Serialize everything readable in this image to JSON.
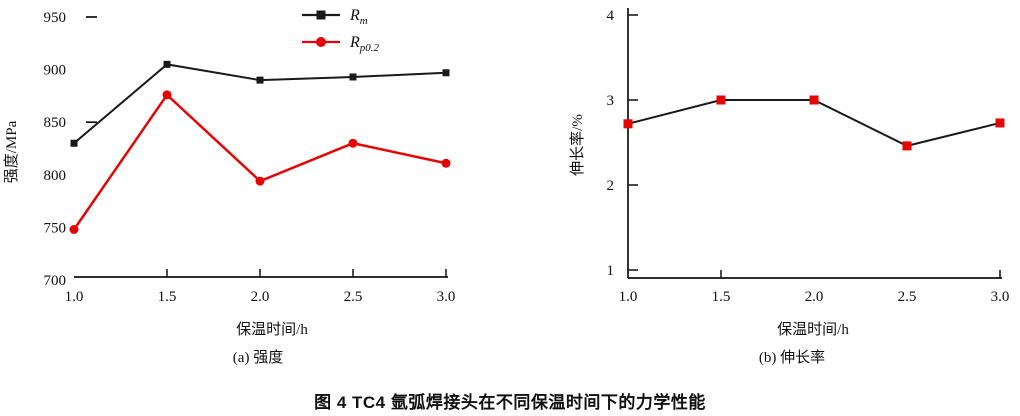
{
  "figure": {
    "caption": "图 4  TC4 氩弧焊接头在不同保温时间下的力学性能"
  },
  "colors": {
    "line_black": "#1a1a1a",
    "line_red": "#e60505"
  },
  "chart_data": [
    {
      "type": "line",
      "subcaption": "(a) 强度",
      "xlabel": "保温时间/h",
      "ylabel": "强度/MPa",
      "x": [
        1.0,
        1.5,
        2.0,
        2.5,
        3.0
      ],
      "x_tick_labels": [
        "1.0",
        "1.5",
        "2.0",
        "2.5",
        "3.0"
      ],
      "y_ticks": [
        950,
        900,
        850,
        800,
        750,
        700
      ],
      "xlim": [
        1.0,
        3.0
      ],
      "ylim": [
        700,
        950
      ],
      "grid": false,
      "legend_position": "top-center",
      "series": [
        {
          "name_main": "R",
          "name_sub": "m",
          "color": "#1a1a1a",
          "marker": "square",
          "values": [
            830,
            905,
            890,
            893,
            897
          ]
        },
        {
          "name_main": "R",
          "name_sub": "p0.2",
          "color": "#e60505",
          "marker": "circle",
          "values": [
            748,
            876,
            794,
            830,
            811
          ]
        }
      ]
    },
    {
      "type": "line",
      "subcaption": "(b) 伸长率",
      "xlabel": "保温时间/h",
      "ylabel": "伸长率/%",
      "x": [
        1.0,
        1.5,
        2.0,
        2.5,
        3.0
      ],
      "x_tick_labels": [
        "1.0",
        "1.5",
        "2.0",
        "2.5",
        "3.0"
      ],
      "y_ticks": [
        4,
        3,
        2,
        1
      ],
      "xlim": [
        1.0,
        3.0
      ],
      "ylim": [
        1,
        4
      ],
      "grid": false,
      "legend_position": "none",
      "series": [
        {
          "name_main": "",
          "name_sub": "",
          "color": "#1a1a1a",
          "marker": "square",
          "marker_color": "#e60505",
          "values": [
            2.72,
            3.0,
            3.0,
            2.46,
            2.73
          ]
        }
      ]
    }
  ]
}
